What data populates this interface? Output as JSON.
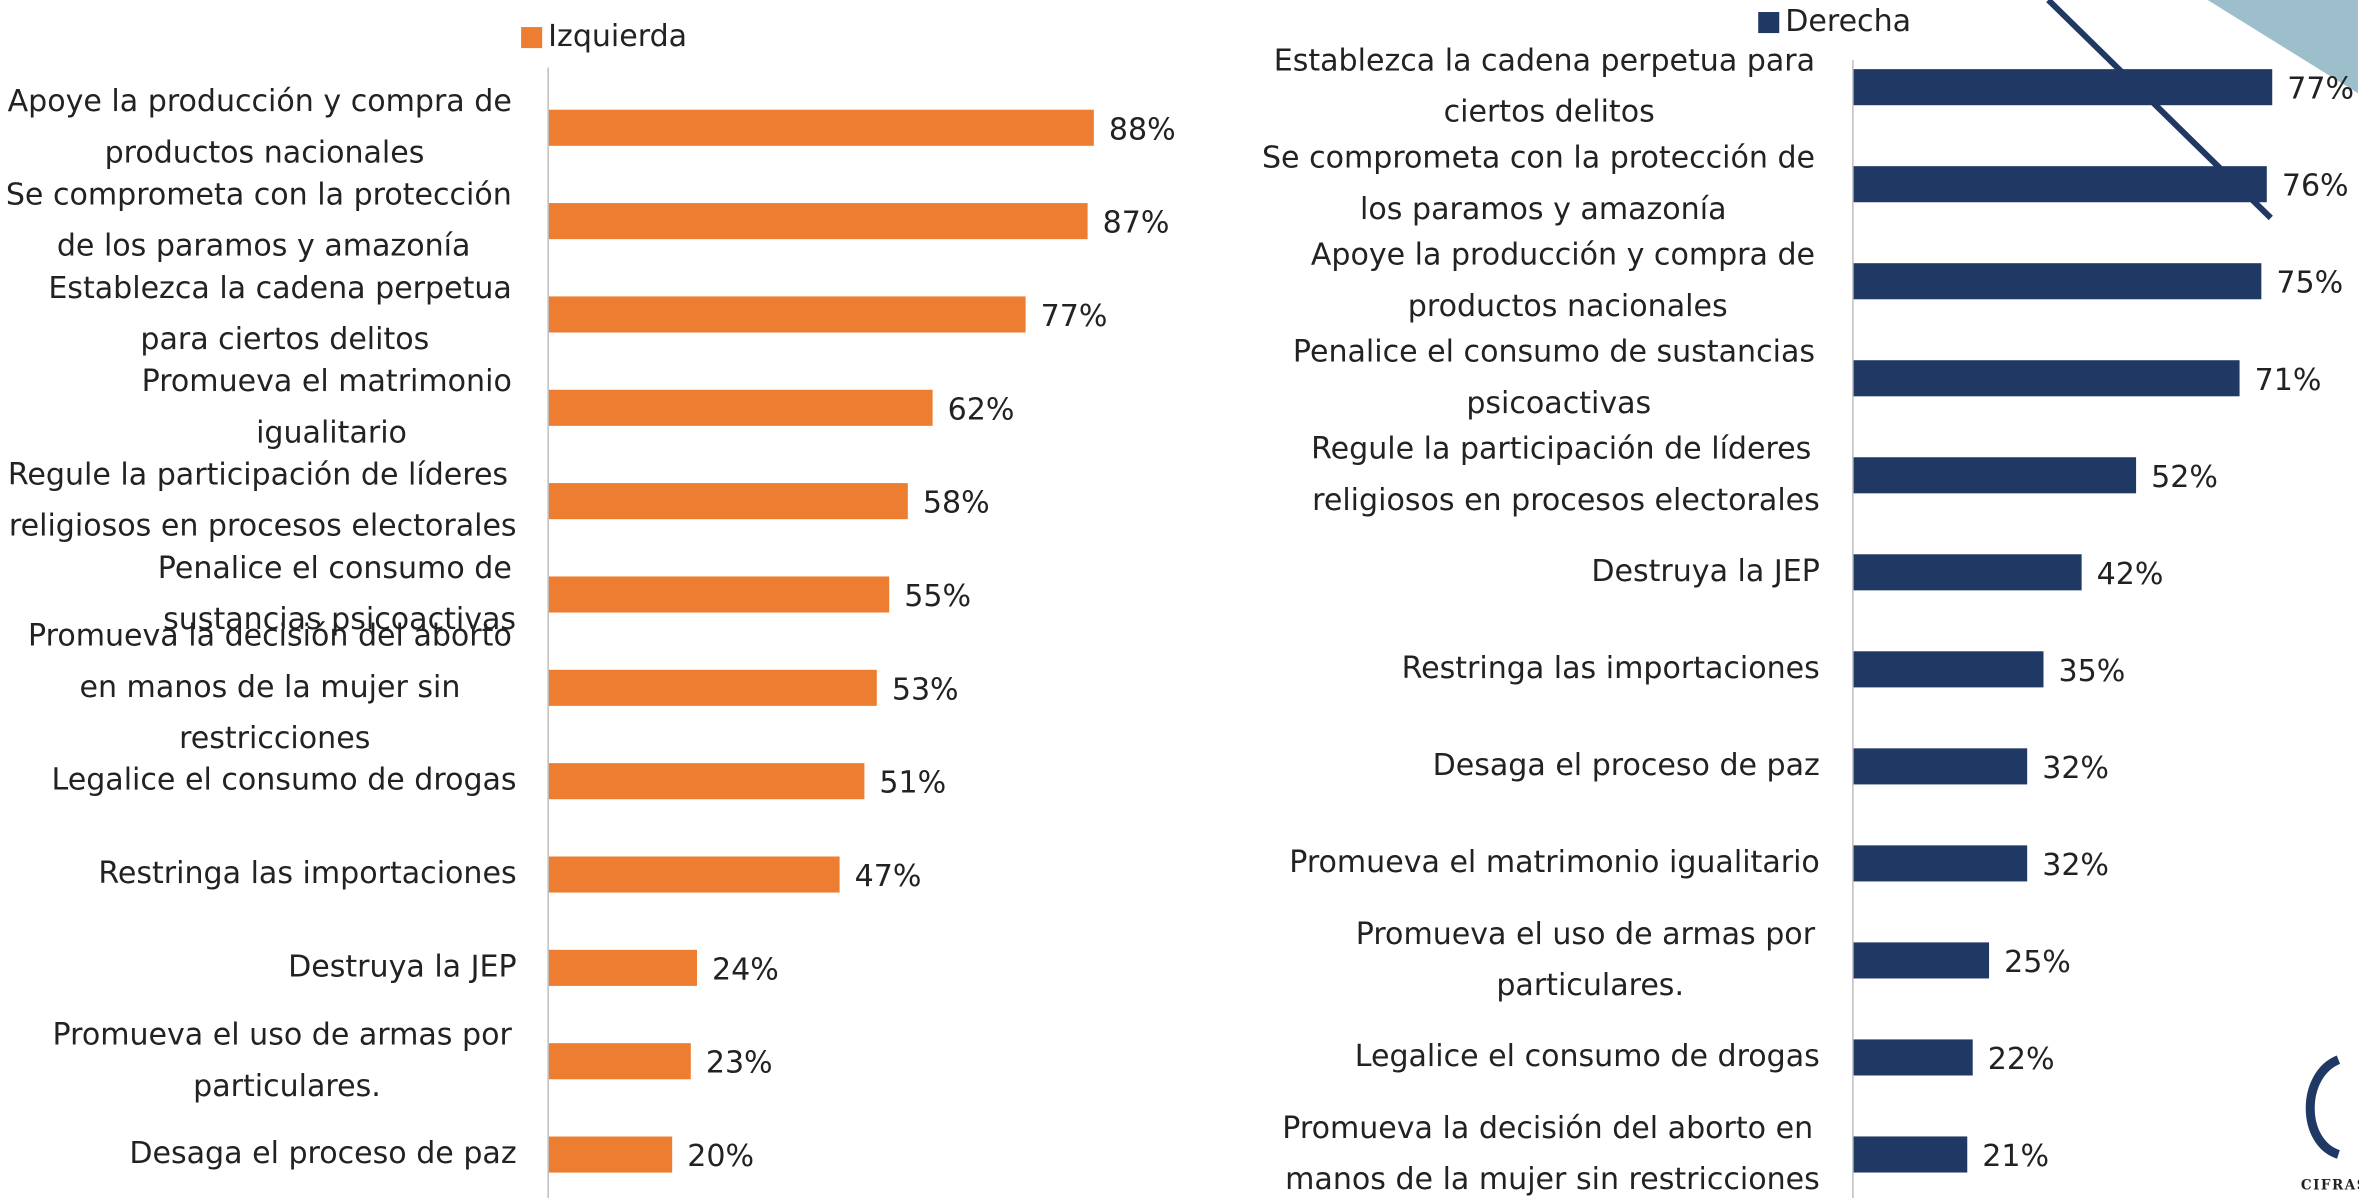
{
  "chart_data": [
    {
      "type": "barh",
      "legend": "Izquierda",
      "color": "#ed7d31",
      "xlim": [
        0,
        100
      ],
      "categories": [
        "Apoye la producción y compra de productos nacionales",
        "Se comprometa con la protección de los paramos y amazonía",
        "Establezca la cadena perpetua para ciertos delitos",
        "Promueva el matrimonio igualitario",
        "Regule la participación de líderes religiosos en procesos electorales",
        "Penalice el consumo de sustancias psicoactivas",
        "Promueva la decisión del aborto en manos de la mujer sin restricciones",
        "Legalice el consumo de drogas",
        "Restringa las importaciones",
        "Destruya la JEP",
        "Promueva el uso de armas por particulares.",
        "Desaga el proceso de paz"
      ],
      "values": [
        88,
        87,
        77,
        62,
        58,
        55,
        53,
        51,
        47,
        24,
        23,
        20
      ],
      "value_labels": [
        "88%",
        "87%",
        "77%",
        "62%",
        "58%",
        "55%",
        "53%",
        "51%",
        "47%",
        "24%",
        "23%",
        "20%"
      ]
    },
    {
      "type": "barh",
      "legend": "Derecha",
      "color": "#203864",
      "xlim": [
        0,
        100
      ],
      "categories": [
        "Establezca la cadena perpetua para ciertos delitos",
        "Se comprometa con la protección de los paramos y amazonía",
        "Apoye la producción y compra de productos nacionales",
        "Penalice el consumo de sustancias psicoactivas",
        "Regule la participación de líderes religiosos en procesos electorales",
        "Destruya la JEP",
        "Restringa las importaciones",
        "Desaga el proceso de paz",
        "Promueva el matrimonio igualitario",
        "Promueva el uso de armas por particulares.",
        "Legalice el consumo de drogas",
        "Promueva la decisión del aborto en manos de la mujer sin restricciones"
      ],
      "values": [
        77,
        76,
        75,
        71,
        52,
        42,
        35,
        32,
        32,
        25,
        22,
        21
      ],
      "value_labels": [
        "77%",
        "76%",
        "75%",
        "71%",
        "52%",
        "42%",
        "35%",
        "32%",
        "32%",
        "25%",
        "22%",
        "21%"
      ]
    }
  ],
  "logo_text": "CIFRAS"
}
